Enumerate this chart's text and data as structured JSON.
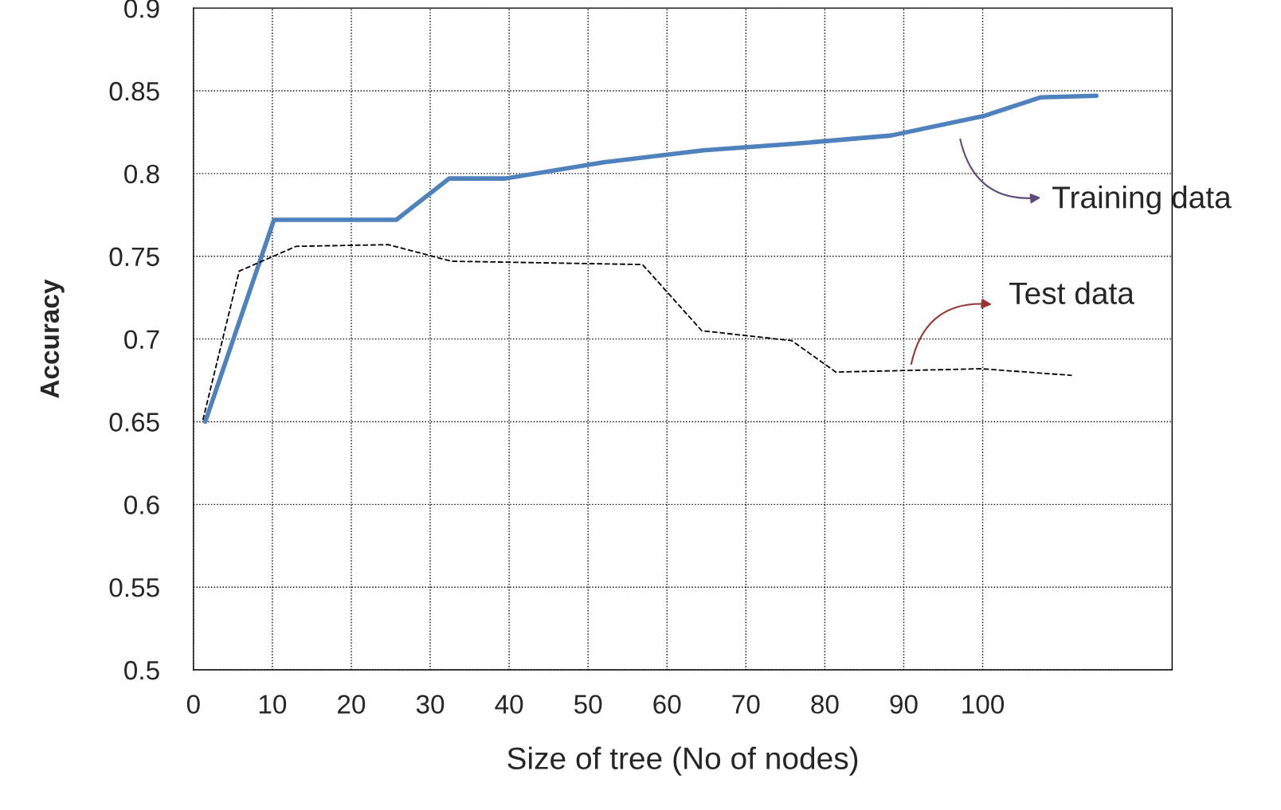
{
  "chart_data": {
    "type": "line",
    "xlabel": "Size of tree (No of nodes)",
    "ylabel": "Accuracy",
    "xlim": [
      0,
      124
    ],
    "xticks": [
      0,
      10,
      20,
      30,
      40,
      50,
      60,
      70,
      80,
      90,
      100
    ],
    "ylim": [
      0.5,
      0.9
    ],
    "yticks": [
      0.5,
      0.55,
      0.6,
      0.65,
      0.7,
      0.75,
      0.8,
      0.85,
      0.9
    ],
    "grid": true,
    "legend": false,
    "marker": "none",
    "series": [
      {
        "color": "#4f81bd",
        "line_style": "solid",
        "x": [
          1.5,
          10.2,
          25.7,
          32.4,
          39.5,
          52.3,
          64.6,
          76.1,
          88.4,
          100.3,
          107.3,
          114.4
        ],
        "values": [
          0.65,
          0.772,
          0.772,
          0.797,
          0.797,
          0.807,
          0.814,
          0.818,
          0.823,
          0.835,
          0.846,
          0.847
        ]
      },
      {
        "color": "#000000",
        "line_style": "dashed",
        "x": [
          1.2,
          5.8,
          13,
          24.7,
          32.7,
          56.9,
          64.4,
          75.8,
          81.4,
          99.8,
          111.3
        ],
        "values": [
          0.651,
          0.741,
          0.756,
          0.757,
          0.747,
          0.745,
          0.705,
          0.699,
          0.68,
          0.682,
          0.678
        ]
      }
    ],
    "annotations": [
      "Training data",
      "Test data"
    ]
  }
}
